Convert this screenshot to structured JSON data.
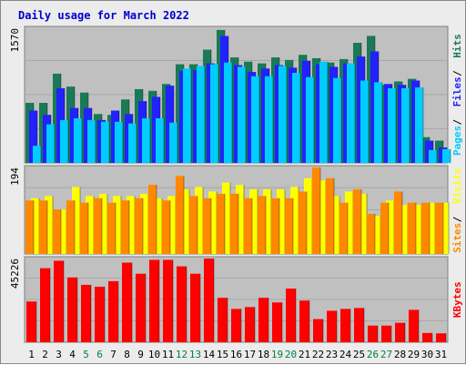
{
  "chart_data": {
    "type": "bar",
    "title": "Daily usage for March 2022",
    "x": [
      1,
      2,
      3,
      4,
      5,
      6,
      7,
      8,
      9,
      10,
      11,
      12,
      13,
      14,
      15,
      16,
      17,
      18,
      19,
      20,
      21,
      22,
      23,
      24,
      25,
      26,
      27,
      28,
      29,
      30,
      31
    ],
    "weekend_days": [
      5,
      6,
      12,
      13,
      19,
      20,
      26,
      27
    ],
    "weekend_color": "#008040",
    "weekday_color": "#000000",
    "panels": [
      {
        "id": "hits",
        "ymax_label": "1570",
        "ymax": 1570,
        "series": [
          {
            "name": "Hits",
            "color": "#1a7a55",
            "values": [
              700,
              700,
              1040,
              890,
              820,
              570,
              560,
              740,
              860,
              840,
              920,
              1150,
              1150,
              1320,
              1550,
              1230,
              1180,
              1160,
              1230,
              1200,
              1260,
              1220,
              1170,
              1210,
              1400,
              1480,
              910,
              950,
              980,
              300,
              260
            ]
          },
          {
            "name": "Files",
            "color": "#2222ff",
            "values": [
              610,
              560,
              870,
              640,
              640,
              500,
              610,
              570,
              720,
              770,
              900,
              1070,
              1080,
              1160,
              1480,
              1140,
              1060,
              1100,
              1140,
              1110,
              1190,
              1150,
              1120,
              1160,
              1240,
              1300,
              920,
              910,
              960,
              260,
              180
            ]
          },
          {
            "name": "Pages",
            "color": "#00ccff",
            "values": [
              200,
              450,
              500,
              520,
              500,
              480,
              480,
              460,
              520,
              520,
              470,
              1100,
              1130,
              1150,
              1170,
              1120,
              1010,
              1010,
              1130,
              1050,
              1000,
              1180,
              990,
              1160,
              960,
              940,
              870,
              870,
              880,
              150,
              160
            ]
          }
        ],
        "legend": [
          "Pages",
          "Files",
          "Hits"
        ]
      },
      {
        "id": "visits",
        "ymax_label": "194",
        "ymax": 194,
        "series": [
          {
            "name": "Visits",
            "color": "#ffff00",
            "values": [
              125,
              130,
              100,
              150,
              130,
              135,
              130,
              130,
              135,
              125,
              130,
              145,
              150,
              140,
              160,
              155,
              145,
              145,
              145,
              150,
              170,
              165,
              130,
              140,
              135,
              85,
              120,
              110,
              110,
              115,
              115
            ]
          },
          {
            "name": "Sites",
            "color": "#ff8800",
            "values": [
              120,
              120,
              100,
              120,
              115,
              125,
              115,
              120,
              125,
              155,
              120,
              175,
              130,
              125,
              135,
              135,
              125,
              130,
              125,
              125,
              140,
              200,
              170,
              115,
              145,
              90,
              115,
              140,
              115,
              115,
              115
            ]
          }
        ],
        "legend": [
          "Sites",
          "Visits"
        ]
      },
      {
        "id": "kbytes",
        "ymax_label": "45226",
        "ymax": 45226,
        "series": [
          {
            "name": "KBytes",
            "color": "#ff0000",
            "values": [
              22000,
              40000,
              44000,
              35000,
              31000,
              30000,
              33000,
              43000,
              37000,
              44500,
              44500,
              41000,
              37000,
              46000,
              24000,
              18000,
              19000,
              24000,
              21500,
              29000,
              22500,
              12500,
              17000,
              18000,
              18500,
              9000,
              9000,
              10500,
              17500,
              5000,
              4800
            ]
          }
        ],
        "legend": [
          "KBytes"
        ]
      }
    ],
    "xlabel": "",
    "ylabel": ""
  }
}
